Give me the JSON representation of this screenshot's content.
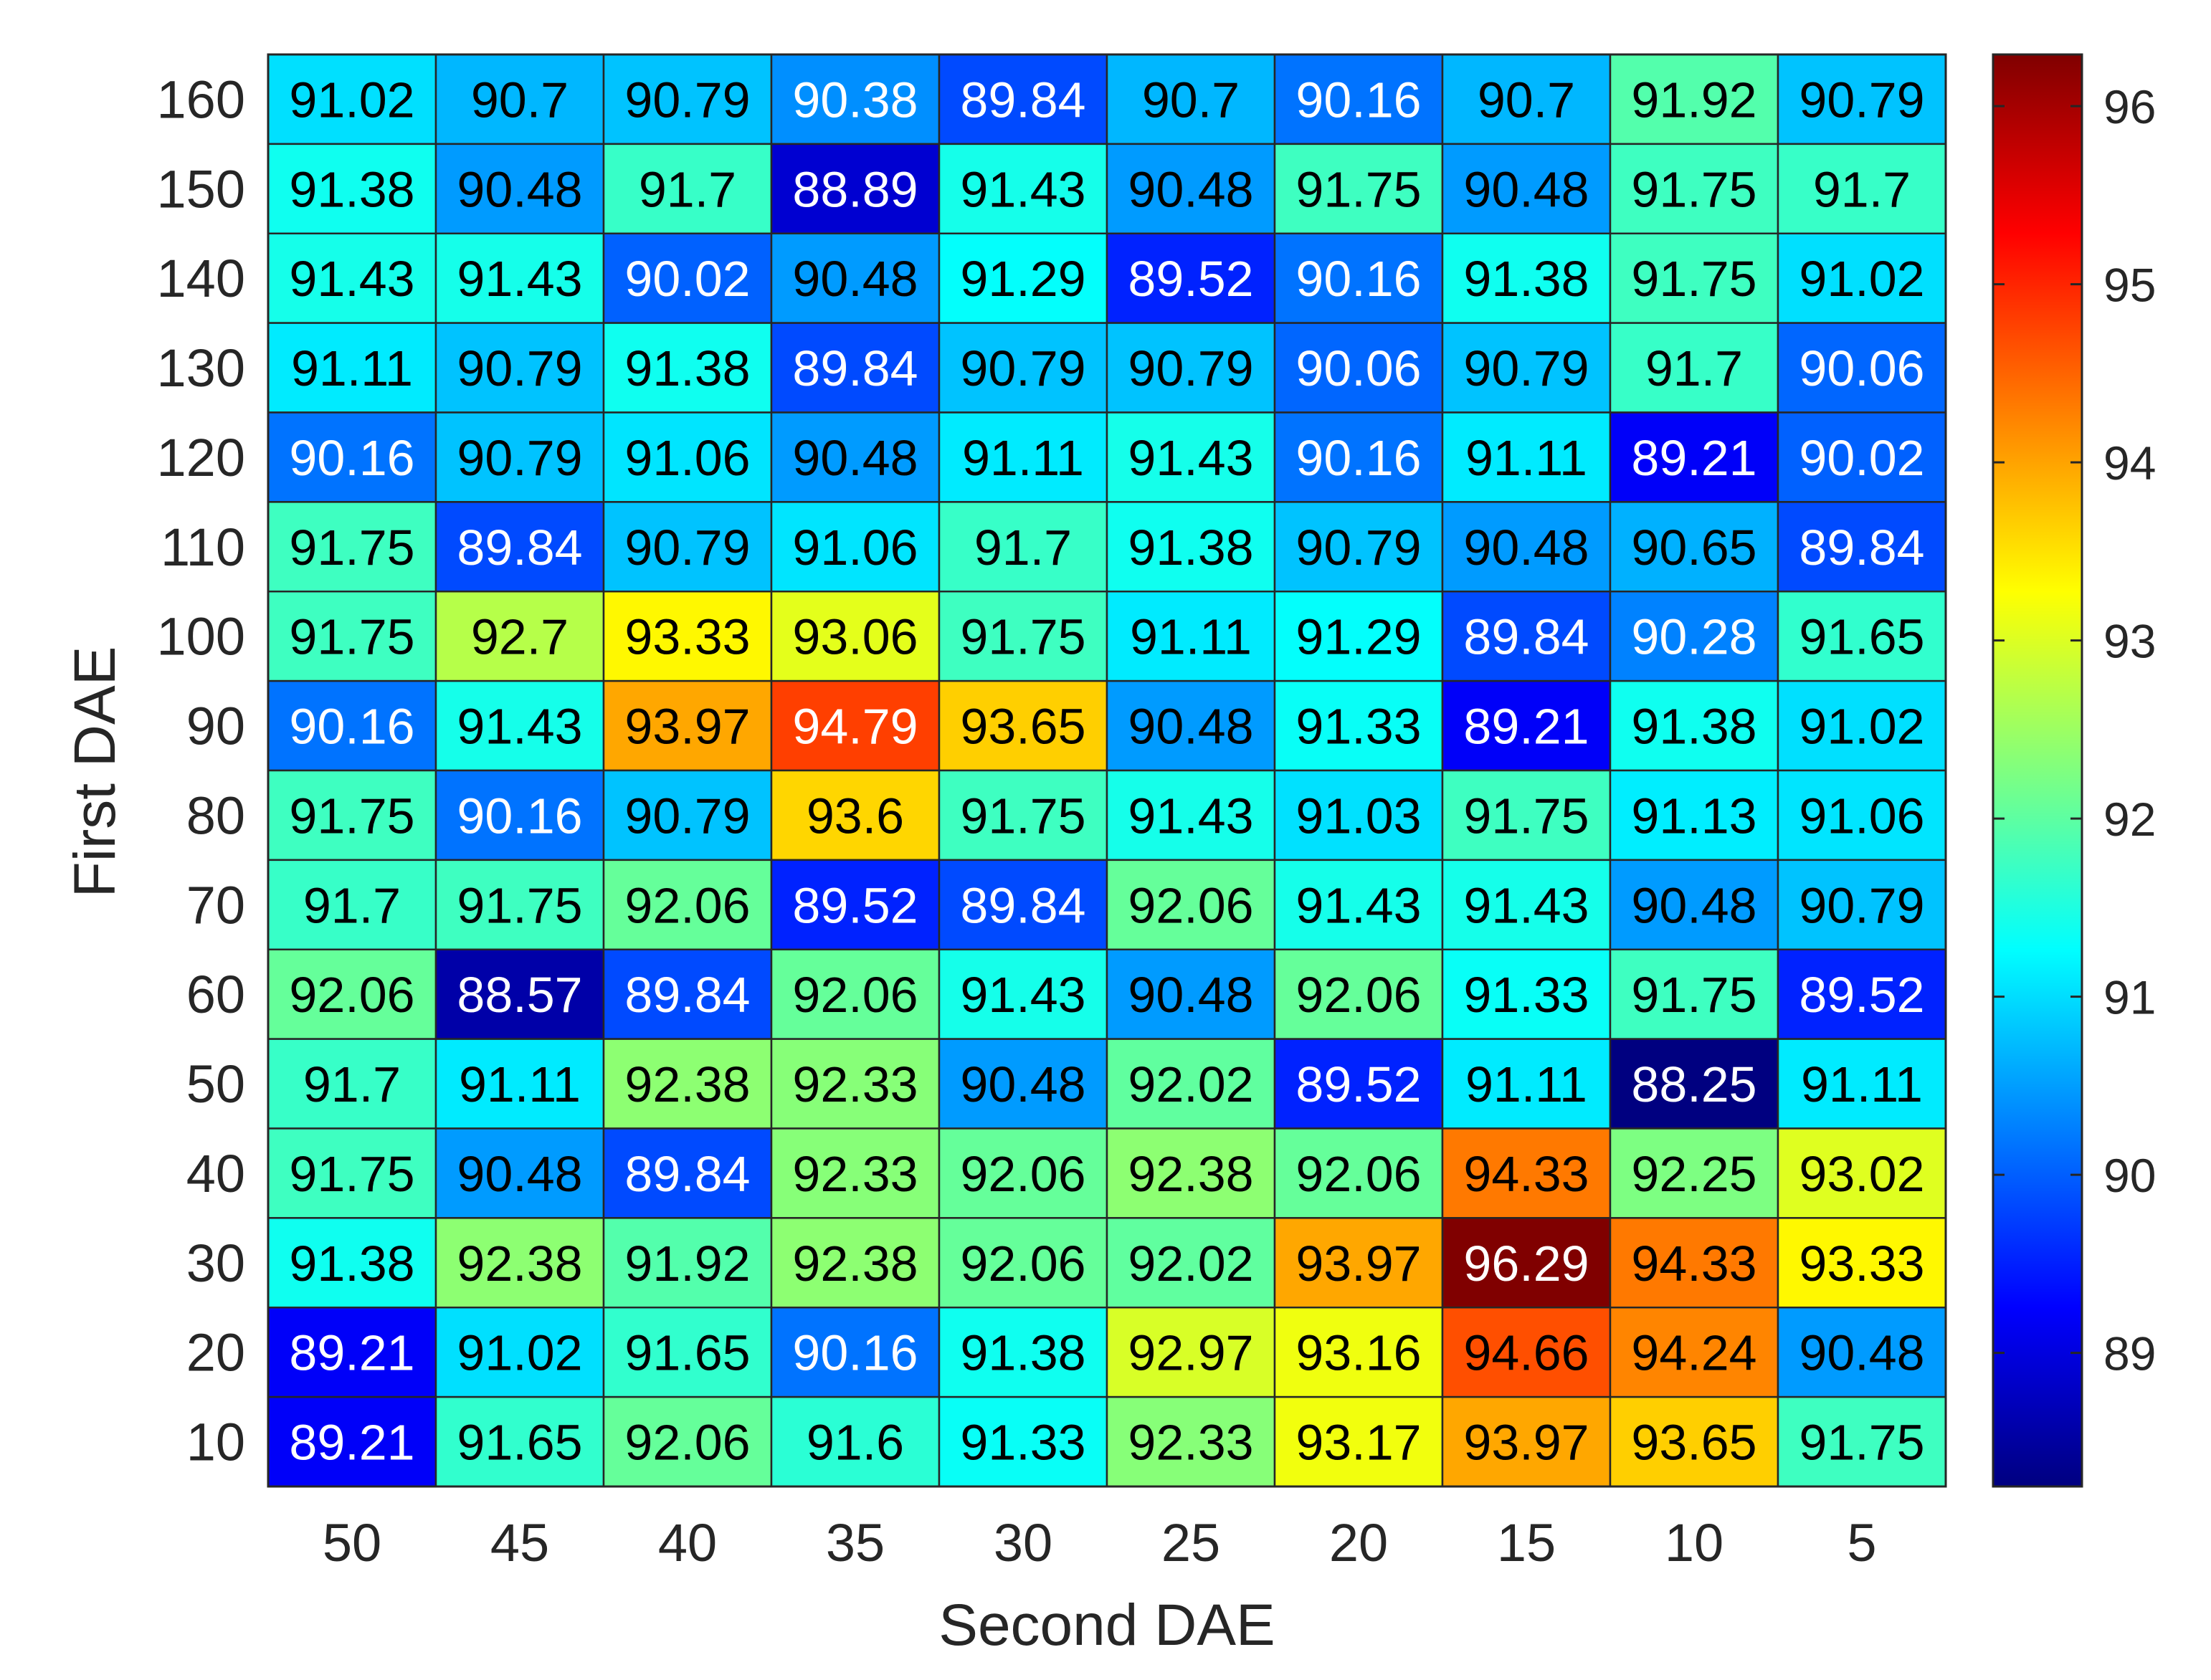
{
  "chart_data": {
    "type": "heatmap",
    "xlabel": "Second DAE",
    "ylabel": "First DAE",
    "x_categories": [
      "50",
      "45",
      "40",
      "35",
      "30",
      "25",
      "20",
      "15",
      "10",
      "5"
    ],
    "y_categories": [
      "160",
      "150",
      "140",
      "130",
      "120",
      "110",
      "100",
      "90",
      "80",
      "70",
      "60",
      "50",
      "40",
      "30",
      "20",
      "10"
    ],
    "values": [
      [
        91.02,
        90.7,
        90.79,
        90.38,
        89.84,
        90.7,
        90.16,
        90.7,
        91.92,
        90.79
      ],
      [
        91.38,
        90.48,
        91.7,
        88.89,
        91.43,
        90.48,
        91.75,
        90.48,
        91.75,
        91.7
      ],
      [
        91.43,
        91.43,
        90.02,
        90.48,
        91.29,
        89.52,
        90.16,
        91.38,
        91.75,
        91.02
      ],
      [
        91.11,
        90.79,
        91.38,
        89.84,
        90.79,
        90.79,
        90.06,
        90.79,
        91.7,
        90.06
      ],
      [
        90.16,
        90.79,
        91.06,
        90.48,
        91.11,
        91.43,
        90.16,
        91.11,
        89.21,
        90.02
      ],
      [
        91.75,
        89.84,
        90.79,
        91.06,
        91.7,
        91.38,
        90.79,
        90.48,
        90.65,
        89.84
      ],
      [
        91.75,
        92.7,
        93.33,
        93.06,
        91.75,
        91.11,
        91.29,
        89.84,
        90.28,
        91.65
      ],
      [
        90.16,
        91.43,
        93.97,
        94.79,
        93.65,
        90.48,
        91.33,
        89.21,
        91.38,
        91.02
      ],
      [
        91.75,
        90.16,
        90.79,
        93.6,
        91.75,
        91.43,
        91.03,
        91.75,
        91.13,
        91.06
      ],
      [
        91.7,
        91.75,
        92.06,
        89.52,
        89.84,
        92.06,
        91.43,
        91.43,
        90.48,
        90.79
      ],
      [
        92.06,
        88.57,
        89.84,
        92.06,
        91.43,
        90.48,
        92.06,
        91.33,
        91.75,
        89.52
      ],
      [
        91.7,
        91.11,
        92.38,
        92.33,
        90.48,
        92.02,
        89.52,
        91.11,
        88.25,
        91.11
      ],
      [
        91.75,
        90.48,
        89.84,
        92.33,
        92.06,
        92.38,
        92.06,
        94.33,
        92.25,
        93.02
      ],
      [
        91.38,
        92.38,
        91.92,
        92.38,
        92.06,
        92.02,
        93.97,
        96.29,
        94.33,
        93.33
      ],
      [
        89.21,
        91.02,
        91.65,
        90.16,
        91.38,
        92.97,
        93.16,
        94.66,
        94.24,
        90.48
      ],
      [
        89.21,
        91.65,
        92.06,
        91.6,
        91.33,
        92.33,
        93.17,
        93.97,
        93.65,
        91.75
      ]
    ],
    "colormap": "jet",
    "color_range": [
      88.25,
      96.29
    ],
    "colorbar_ticks": [
      89,
      90,
      91,
      92,
      93,
      94,
      95,
      96
    ],
    "cell_labels": true,
    "grid": true,
    "legend": "colorbar-right"
  }
}
